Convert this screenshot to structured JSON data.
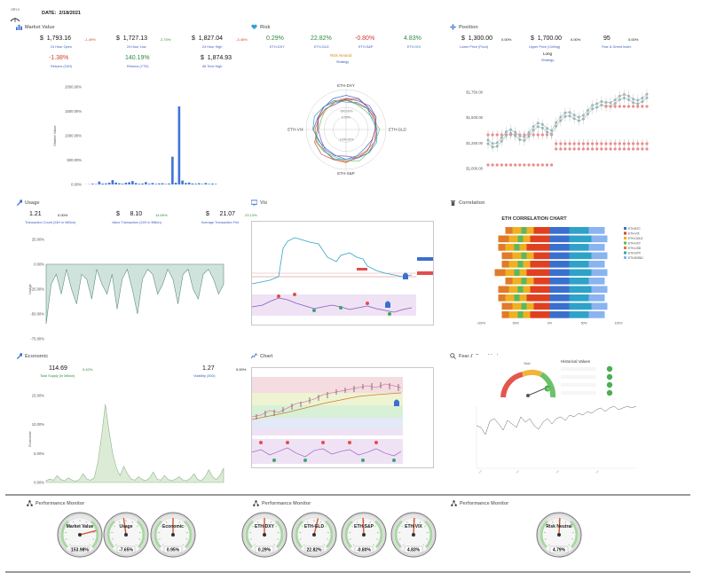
{
  "header": {
    "logo_text": "ORYX",
    "date_label": "DATE:",
    "date_value": "2/18/2021"
  },
  "market": {
    "title": "Market Value",
    "stats": [
      {
        "sym": "$",
        "value": "1,793.16",
        "pct": "-1.49%",
        "label": "24 Hour Open",
        "pct_color": "#d23b2b"
      },
      {
        "sym": "$",
        "value": "1,727.13",
        "pct": "2.74%",
        "label": "24 Hour Low",
        "pct_color": "#2e8b3e"
      },
      {
        "sym": "$",
        "value": "1,827.04",
        "pct": "-3.45%",
        "label": "24 Hour High",
        "pct_color": "#d23b2b"
      }
    ],
    "stats2": [
      {
        "value": "-1.38%",
        "label": "Returns (24H)",
        "color": "#d23b2b"
      },
      {
        "value": "140.19%",
        "label": "Returns (YTD)",
        "color": "#2e8b3e"
      },
      {
        "sym": "$",
        "value": "1,874.93",
        "label": "All Time High",
        "color": "#111"
      }
    ]
  },
  "risk": {
    "title": "Risk",
    "stats": [
      {
        "value": "0.29%",
        "label": "ETH-DXY",
        "color": "#2e8b3e"
      },
      {
        "value": "22.82%",
        "label": "ETH-GLD",
        "color": "#2e8b3e"
      },
      {
        "value": "-0.80%",
        "label": "ETH-S&P",
        "color": "#d23b2b"
      },
      {
        "value": "4.83%",
        "label": "ETH-VIX",
        "color": "#2e8b3e"
      }
    ],
    "strategy_value": "Risk Neutral",
    "strategy_label": "Strategy"
  },
  "position": {
    "title": "Position",
    "stats": [
      {
        "sym": "$",
        "value": "1,300.00",
        "pct": "0.00%",
        "label": "Lower Price (Floor)"
      },
      {
        "sym": "$",
        "value": "1,700.00",
        "pct": "0.00%",
        "label": "Upper Price (Ceiling)"
      },
      {
        "value": "95",
        "pct": "0.00%",
        "label": "Fear & Greed Index"
      }
    ],
    "strategy_value": "Long",
    "strategy_label": "Strategy"
  },
  "usage": {
    "title": "Usage",
    "stats": [
      {
        "value": "1.21",
        "pct": "0.00%",
        "label": "Transaction Count (24H in Million)",
        "pct_color": "#111"
      },
      {
        "sym": "$",
        "value": "8.10",
        "pct": "14.69%",
        "label": "Value Transaction (24H in Billion)",
        "pct_color": "#2e8b3e"
      },
      {
        "sym": "$",
        "value": "21.07",
        "pct": "23.13%",
        "label": "Average Transaction Fee",
        "pct_color": "#2e8b3e"
      }
    ]
  },
  "vix": {
    "title": "Vix"
  },
  "correlation": {
    "title": "Correlation"
  },
  "economic": {
    "title": "Economic",
    "stats": [
      {
        "value": "114.69",
        "pct": "0.42%",
        "label": "Total Supply (In Million)",
        "pct_color": "#2e8b3e"
      },
      {
        "value": "1.27",
        "pct": "0.00%",
        "label": "Volatility (30D)",
        "pct_color": "#111"
      }
    ]
  },
  "chart": {
    "title": "Chart"
  },
  "fear": {
    "title": "Fear & Greed Index",
    "now_label": "Now",
    "now_value": "95",
    "historical_title": "Historical Values"
  },
  "monitors": [
    {
      "title": "Performance Monitor",
      "gauges": [
        {
          "name": "Market Value",
          "value": "153.98%",
          "level": 0.78
        },
        {
          "name": "Usage",
          "value": "-7.65%",
          "level": 0.47
        },
        {
          "name": "Economic",
          "value": "0.95%",
          "level": 0.5
        }
      ]
    },
    {
      "title": "Performance Monitor",
      "gauges": [
        {
          "name": "ETH-DXY",
          "value": "0.29%",
          "level": 0.5
        },
        {
          "name": "ETH-GLD",
          "value": "22.82%",
          "level": 0.55
        },
        {
          "name": "ETH-S&P",
          "value": "-0.80%",
          "level": 0.49
        },
        {
          "name": "ETH-VIX",
          "value": "4.83%",
          "level": 0.51
        }
      ]
    },
    {
      "title": "Performance Monitor",
      "gauges": [
        {
          "name": "Risk Neutral",
          "value": "4.79%",
          "level": 0.51
        }
      ]
    }
  ],
  "chart_data": [
    {
      "type": "bar",
      "ylabel": "Market Value",
      "ylim": [
        0,
        2000
      ],
      "yticks": [
        "0.00%",
        "500.00%",
        "1000.00%",
        "1500.00%",
        "2000.00%"
      ],
      "values": [
        2,
        5,
        15,
        8,
        60,
        18,
        22,
        35,
        90,
        40,
        25,
        15,
        35,
        45,
        70,
        30,
        15,
        20,
        48,
        15,
        30,
        12,
        22,
        25,
        10,
        20,
        570,
        35,
        1600,
        80,
        30,
        40,
        20,
        15,
        25,
        10,
        30,
        12,
        18,
        10
      ]
    },
    {
      "type": "radar",
      "axes": [
        "ETH-DXY",
        "ETH-GLD",
        "ETH-S&P",
        "ETH-VIX"
      ],
      "ring_labels": [
        "0.00%",
        "-500.00%",
        "-1000.00%",
        "500.00%"
      ]
    },
    {
      "type": "line",
      "yticks": [
        "$1,000.00",
        "$1,250.00",
        "$1,500.00",
        "$1,750.00"
      ],
      "ylim": [
        1000,
        1900
      ]
    },
    {
      "type": "area",
      "ylabel": "Usage",
      "ylim": [
        -75,
        25
      ],
      "yticks": [
        "25.00%",
        "0.00%",
        "-25.00%",
        "-50.00%",
        "-75.00%"
      ]
    },
    {
      "type": "bar",
      "title": "ETH CORRELATION CHART",
      "legend": [
        "ETH-BTC",
        "ETH-VIX",
        "ETH-GOLD",
        "ETH-DXY",
        "ETH-USD",
        "ETH-SPX",
        "ETH-BOND"
      ],
      "xticks": [
        "-100%",
        "-50%",
        "0%",
        "50%",
        "100%"
      ]
    },
    {
      "type": "area",
      "ylabel": "Economic",
      "ylim": [
        0,
        15
      ],
      "yticks": [
        "15.00%",
        "10.00%",
        "5.00%",
        "0.00%"
      ]
    }
  ]
}
